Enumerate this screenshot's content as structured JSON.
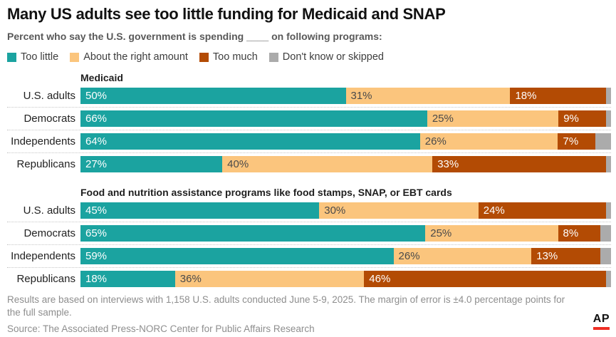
{
  "header": {
    "title": "Many US adults see too little funding for Medicaid and SNAP",
    "subtitle": "Percent who say the U.S. government is spending ____ on following programs:"
  },
  "colors": {
    "too_little": "#1ba3a0",
    "about_right": "#fbc57d",
    "too_much": "#b34b04",
    "dont_know": "#ababab",
    "ap_red": "#ee2e24"
  },
  "chart_data": {
    "type": "bar",
    "stacked": true,
    "orientation": "horizontal",
    "unit": "%",
    "axis_range": [
      0,
      100
    ],
    "grid": false,
    "legend_position": "top",
    "series": [
      {
        "key": "too-little",
        "name": "Too little",
        "color": "#1ba3a0",
        "label_color": "#ffffff",
        "show_label": true
      },
      {
        "key": "about-right",
        "name": "About the right amount",
        "color": "#fbc57d",
        "label_color": "#4a4a4a",
        "show_label": true
      },
      {
        "key": "too-much",
        "name": "Too much",
        "color": "#b34b04",
        "label_color": "#ffffff",
        "show_label": true
      },
      {
        "key": "dont-know",
        "name": "Don't know or skipped",
        "color": "#ababab",
        "label_color": "#ffffff",
        "show_label": false
      }
    ],
    "sections": [
      {
        "title": "Medicaid",
        "rows": [
          {
            "label": "U.S. adults",
            "values": [
              50,
              31,
              18,
              1
            ]
          },
          {
            "label": "Democrats",
            "values": [
              66,
              25,
              9,
              1
            ]
          },
          {
            "label": "Independents",
            "values": [
              64,
              26,
              7,
              3
            ]
          },
          {
            "label": "Republicans",
            "values": [
              27,
              40,
              33,
              1
            ]
          }
        ]
      },
      {
        "title": "Food and nutrition assistance programs like food stamps, SNAP, or EBT cards",
        "rows": [
          {
            "label": "U.S. adults",
            "values": [
              45,
              30,
              24,
              1
            ]
          },
          {
            "label": "Democrats",
            "values": [
              65,
              25,
              8,
              2
            ]
          },
          {
            "label": "Independents",
            "values": [
              59,
              26,
              13,
              2
            ]
          },
          {
            "label": "Republicans",
            "values": [
              18,
              36,
              46,
              1
            ]
          }
        ]
      }
    ]
  },
  "footer": {
    "note": "Results are based on interviews with 1,158 U.S. adults conducted June 5-9, 2025. The margin of error is ±4.0 percentage points for the full sample.",
    "source": "Source: The Associated Press-NORC Center for Public Affairs Research",
    "logo_text": "AP"
  }
}
